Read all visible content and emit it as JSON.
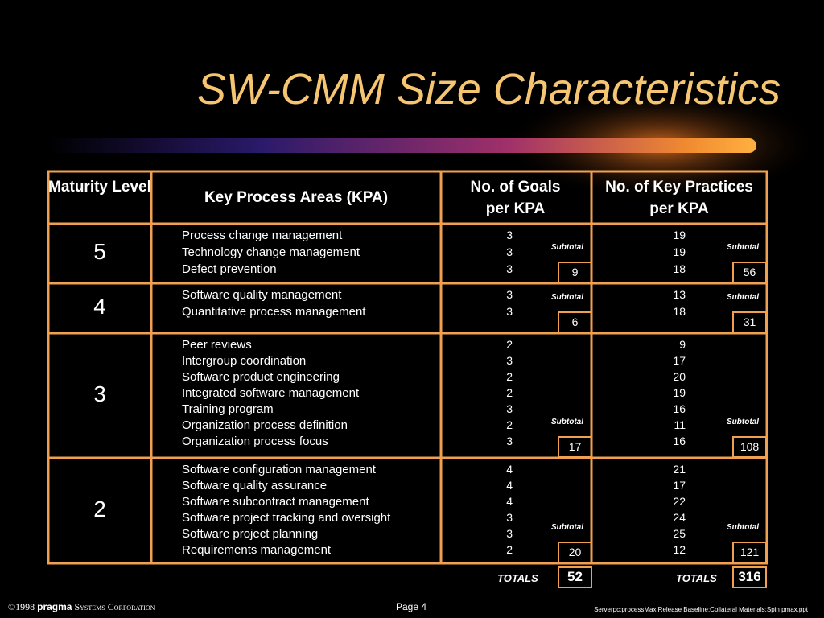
{
  "title": "SW-CMM Size Characteristics",
  "table": {
    "headers": [
      "Maturity Level",
      "Key Process Areas (KPA)",
      "No. of Goals per KPA",
      "No. of Key Practices per KPA"
    ],
    "subtotal_label": "Subtotal",
    "groups": [
      {
        "level": "5",
        "kpas": [
          {
            "name": "Process change management",
            "goals": 3,
            "practices": 19
          },
          {
            "name": "Technology change management",
            "goals": 3,
            "practices": 19
          },
          {
            "name": "Defect prevention",
            "goals": 3,
            "practices": 18
          }
        ],
        "goals_subtotal": 9,
        "practices_subtotal": 56
      },
      {
        "level": "4",
        "kpas": [
          {
            "name": "Software quality management",
            "goals": 3,
            "practices": 13
          },
          {
            "name": "Quantitative process management",
            "goals": 3,
            "practices": 18
          }
        ],
        "goals_subtotal": 6,
        "practices_subtotal": 31
      },
      {
        "level": "3",
        "kpas": [
          {
            "name": "Peer reviews",
            "goals": 2,
            "practices": 9
          },
          {
            "name": "Intergroup coordination",
            "goals": 3,
            "practices": 17
          },
          {
            "name": "Software product engineering",
            "goals": 2,
            "practices": 20
          },
          {
            "name": "Integrated software management",
            "goals": 2,
            "practices": 19
          },
          {
            "name": "Training program",
            "goals": 3,
            "practices": 16
          },
          {
            "name": "Organization process definition",
            "goals": 2,
            "practices": 11
          },
          {
            "name": "Organization process focus",
            "goals": 3,
            "practices": 16
          }
        ],
        "goals_subtotal": 17,
        "practices_subtotal": 108
      },
      {
        "level": "2",
        "kpas": [
          {
            "name": "Software configuration management",
            "goals": 4,
            "practices": 21
          },
          {
            "name": "Software quality assurance",
            "goals": 4,
            "practices": 17
          },
          {
            "name": "Software subcontract management",
            "goals": 4,
            "practices": 22
          },
          {
            "name": "Software project tracking and oversight",
            "goals": 3,
            "practices": 24
          },
          {
            "name": "Software project planning",
            "goals": 3,
            "practices": 25
          },
          {
            "name": "Requirements management",
            "goals": 2,
            "practices": 12
          }
        ],
        "goals_subtotal": 20,
        "practices_subtotal": 121
      }
    ],
    "totals_label": "TOTALS",
    "goals_total": 52,
    "practices_total": 316
  },
  "footer": {
    "copyright": "©1998",
    "brand": "pragma",
    "company": "Systems Corporation",
    "page": "Page 4",
    "file": "Serverpc:processMax Release Baseline:Collateral Materials:Spin pmax.ppt"
  }
}
